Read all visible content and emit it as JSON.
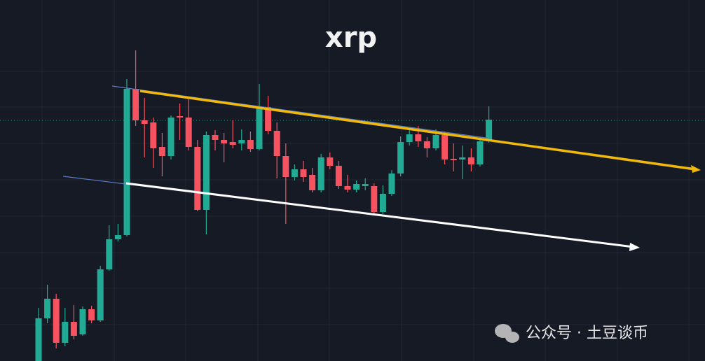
{
  "chart_data": {
    "type": "candlestick",
    "title": "xrp",
    "annotation": "公众号 · 土豆谈币",
    "ylim": [
      0,
      516
    ],
    "up_color": "#22ab94",
    "down_color": "#f7525f",
    "open": [
      0,
      61,
      89,
      26,
      56,
      38,
      74,
      58,
      131,
      174,
      180,
      389,
      344,
      341,
      306,
      293,
      350,
      348,
      306,
      216,
      323,
      316,
      313,
      311,
      316,
      303,
      363,
      329,
      293,
      263,
      274,
      266,
      244,
      291,
      279,
      250,
      245,
      250,
      250,
      213,
      239,
      268,
      313,
      324,
      314,
      304,
      323,
      289,
      288,
      291,
      281,
      314
    ],
    "high": [
      76,
      109,
      96,
      76,
      80,
      78,
      79,
      136,
      194,
      196,
      403,
      444,
      376,
      348,
      326,
      351,
      368,
      374,
      316,
      328,
      330,
      326,
      344,
      331,
      328,
      396,
      379,
      341,
      311,
      281,
      286,
      276,
      296,
      298,
      286,
      266,
      258,
      261,
      254,
      251,
      273,
      321,
      333,
      336,
      320,
      331,
      328,
      311,
      308,
      304,
      320,
      364
    ],
    "low": [
      0,
      54,
      18,
      21,
      31,
      36,
      54,
      56,
      129,
      171,
      178,
      336,
      291,
      276,
      264,
      288,
      316,
      301,
      214,
      181,
      301,
      284,
      304,
      301,
      299,
      301,
      324,
      261,
      196,
      258,
      256,
      241,
      241,
      274,
      246,
      241,
      241,
      244,
      210,
      210,
      236,
      264,
      308,
      306,
      291,
      301,
      281,
      271,
      260,
      271,
      278,
      312
    ],
    "close": [
      61,
      89,
      26,
      56,
      36,
      74,
      58,
      131,
      174,
      180,
      389,
      344,
      339,
      304,
      293,
      348,
      348,
      306,
      216,
      323,
      316,
      311,
      309,
      316,
      303,
      363,
      329,
      293,
      263,
      274,
      263,
      244,
      291,
      279,
      250,
      245,
      253,
      253,
      213,
      239,
      268,
      313,
      324,
      314,
      304,
      323,
      288,
      287,
      291,
      281,
      314,
      345
    ]
  }
}
